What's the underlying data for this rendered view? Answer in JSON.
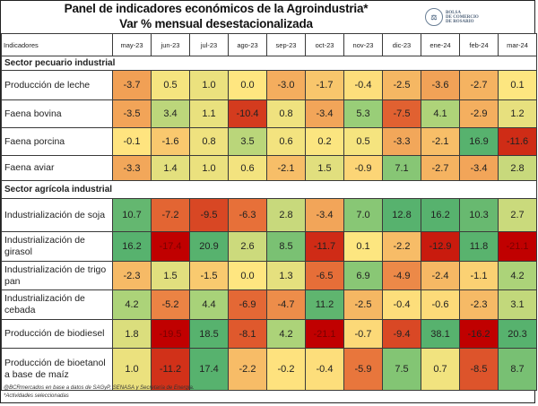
{
  "title": {
    "line1": "Panel de indicadores económicos de la Agroindustria*",
    "line2": "Var % mensual desestacionalizada"
  },
  "logo": {
    "icon": "bcr-seal-icon",
    "lines": [
      "BOLSA",
      "DE COMERCIO",
      "DE ROSARIO"
    ]
  },
  "table": {
    "header_label": "Indicadores",
    "months": [
      "may-23",
      "jun-23",
      "jul-23",
      "ago-23",
      "sep-23",
      "oct-23",
      "nov-23",
      "dic-23",
      "ene-24",
      "feb-24",
      "mar-24"
    ],
    "sectors": [
      {
        "name": "Sector pecuario industrial",
        "rows": [
          {
            "label": "Producción de leche",
            "values": [
              "-3.7",
              "0.5",
              "1.0",
              "0.0",
              "-3.0",
              "-1.7",
              "-0.4",
              "-2.5",
              "-3.6",
              "-2.7",
              "0.1"
            ]
          },
          {
            "label": "Faena bovina",
            "values": [
              "-3.5",
              "3.4",
              "1.1",
              "-10.4",
              "0.8",
              "-3.4",
              "5.3",
              "-7.5",
              "4.1",
              "-2.9",
              "1.2"
            ]
          },
          {
            "label": "Faena porcina",
            "values": [
              "-0.1",
              "-1.6",
              "0.8",
              "3.5",
              "0.6",
              "0.2",
              "0.5",
              "-3.3",
              "-2.1",
              "16.9",
              "-11.6"
            ]
          },
          {
            "label": "Faena aviar",
            "values": [
              "-3.3",
              "1.4",
              "1.0",
              "0.6",
              "-2.1",
              "1.5",
              "-0.9",
              "7.1",
              "-2.7",
              "-3.4",
              "2.8"
            ]
          }
        ]
      },
      {
        "name": "Sector agrícola industrial",
        "rows": [
          {
            "label": "Industrialización de soja",
            "values": [
              "10.7",
              "-7.2",
              "-9.5",
              "-6.3",
              "2.8",
              "-3.4",
              "7.0",
              "12.8",
              "16.2",
              "10.3",
              "2.7"
            ]
          },
          {
            "label": "Industrialización de girasol",
            "values": [
              "16.2",
              "-17.4",
              "20.9",
              "2.6",
              "8.5",
              "-11.7",
              "0.1",
              "-2.2",
              "-12.9",
              "11.8",
              "-21.1"
            ]
          },
          {
            "label": "Industrialización de trigo pan",
            "values": [
              "-2.3",
              "1.5",
              "-1.5",
              "0.0",
              "1.3",
              "-6.5",
              "6.9",
              "-4.9",
              "-2.4",
              "-1.1",
              "4.2"
            ]
          },
          {
            "label": "Industrialización de cebada",
            "values": [
              "4.2",
              "-5.2",
              "4.4",
              "-6.9",
              "-4.7",
              "11.2",
              "-2.5",
              "-0.4",
              "-0.6",
              "-2.3",
              "3.1"
            ]
          },
          {
            "label": "Producción de biodiesel",
            "values": [
              "1.8",
              "-19.5",
              "18.5",
              "-8.1",
              "4.2",
              "-21.1",
              "-0.7",
              "-9.4",
              "38.1",
              "-16.2",
              "20.3"
            ]
          },
          {
            "label": "Producción de bioetanol a base de maíz",
            "values": [
              "1.0",
              "-11.2",
              "17.4",
              "-2.2",
              "-0.2",
              "-0.4",
              "-5.9",
              "7.5",
              "0.7",
              "-8.5",
              "8.7"
            ]
          }
        ]
      }
    ]
  },
  "colors": {
    "scale_min": "#c00000",
    "scale_low": "#e8743b",
    "scale_mid": "#ffe680",
    "scale_high": "#9ccf78",
    "scale_max": "#57b26e"
  },
  "footer": {
    "source": "@BCRmercados en base a datos de SAGyP, SENASA y Secretaría de Energía.",
    "note": "*Actividades seleccionadas"
  }
}
